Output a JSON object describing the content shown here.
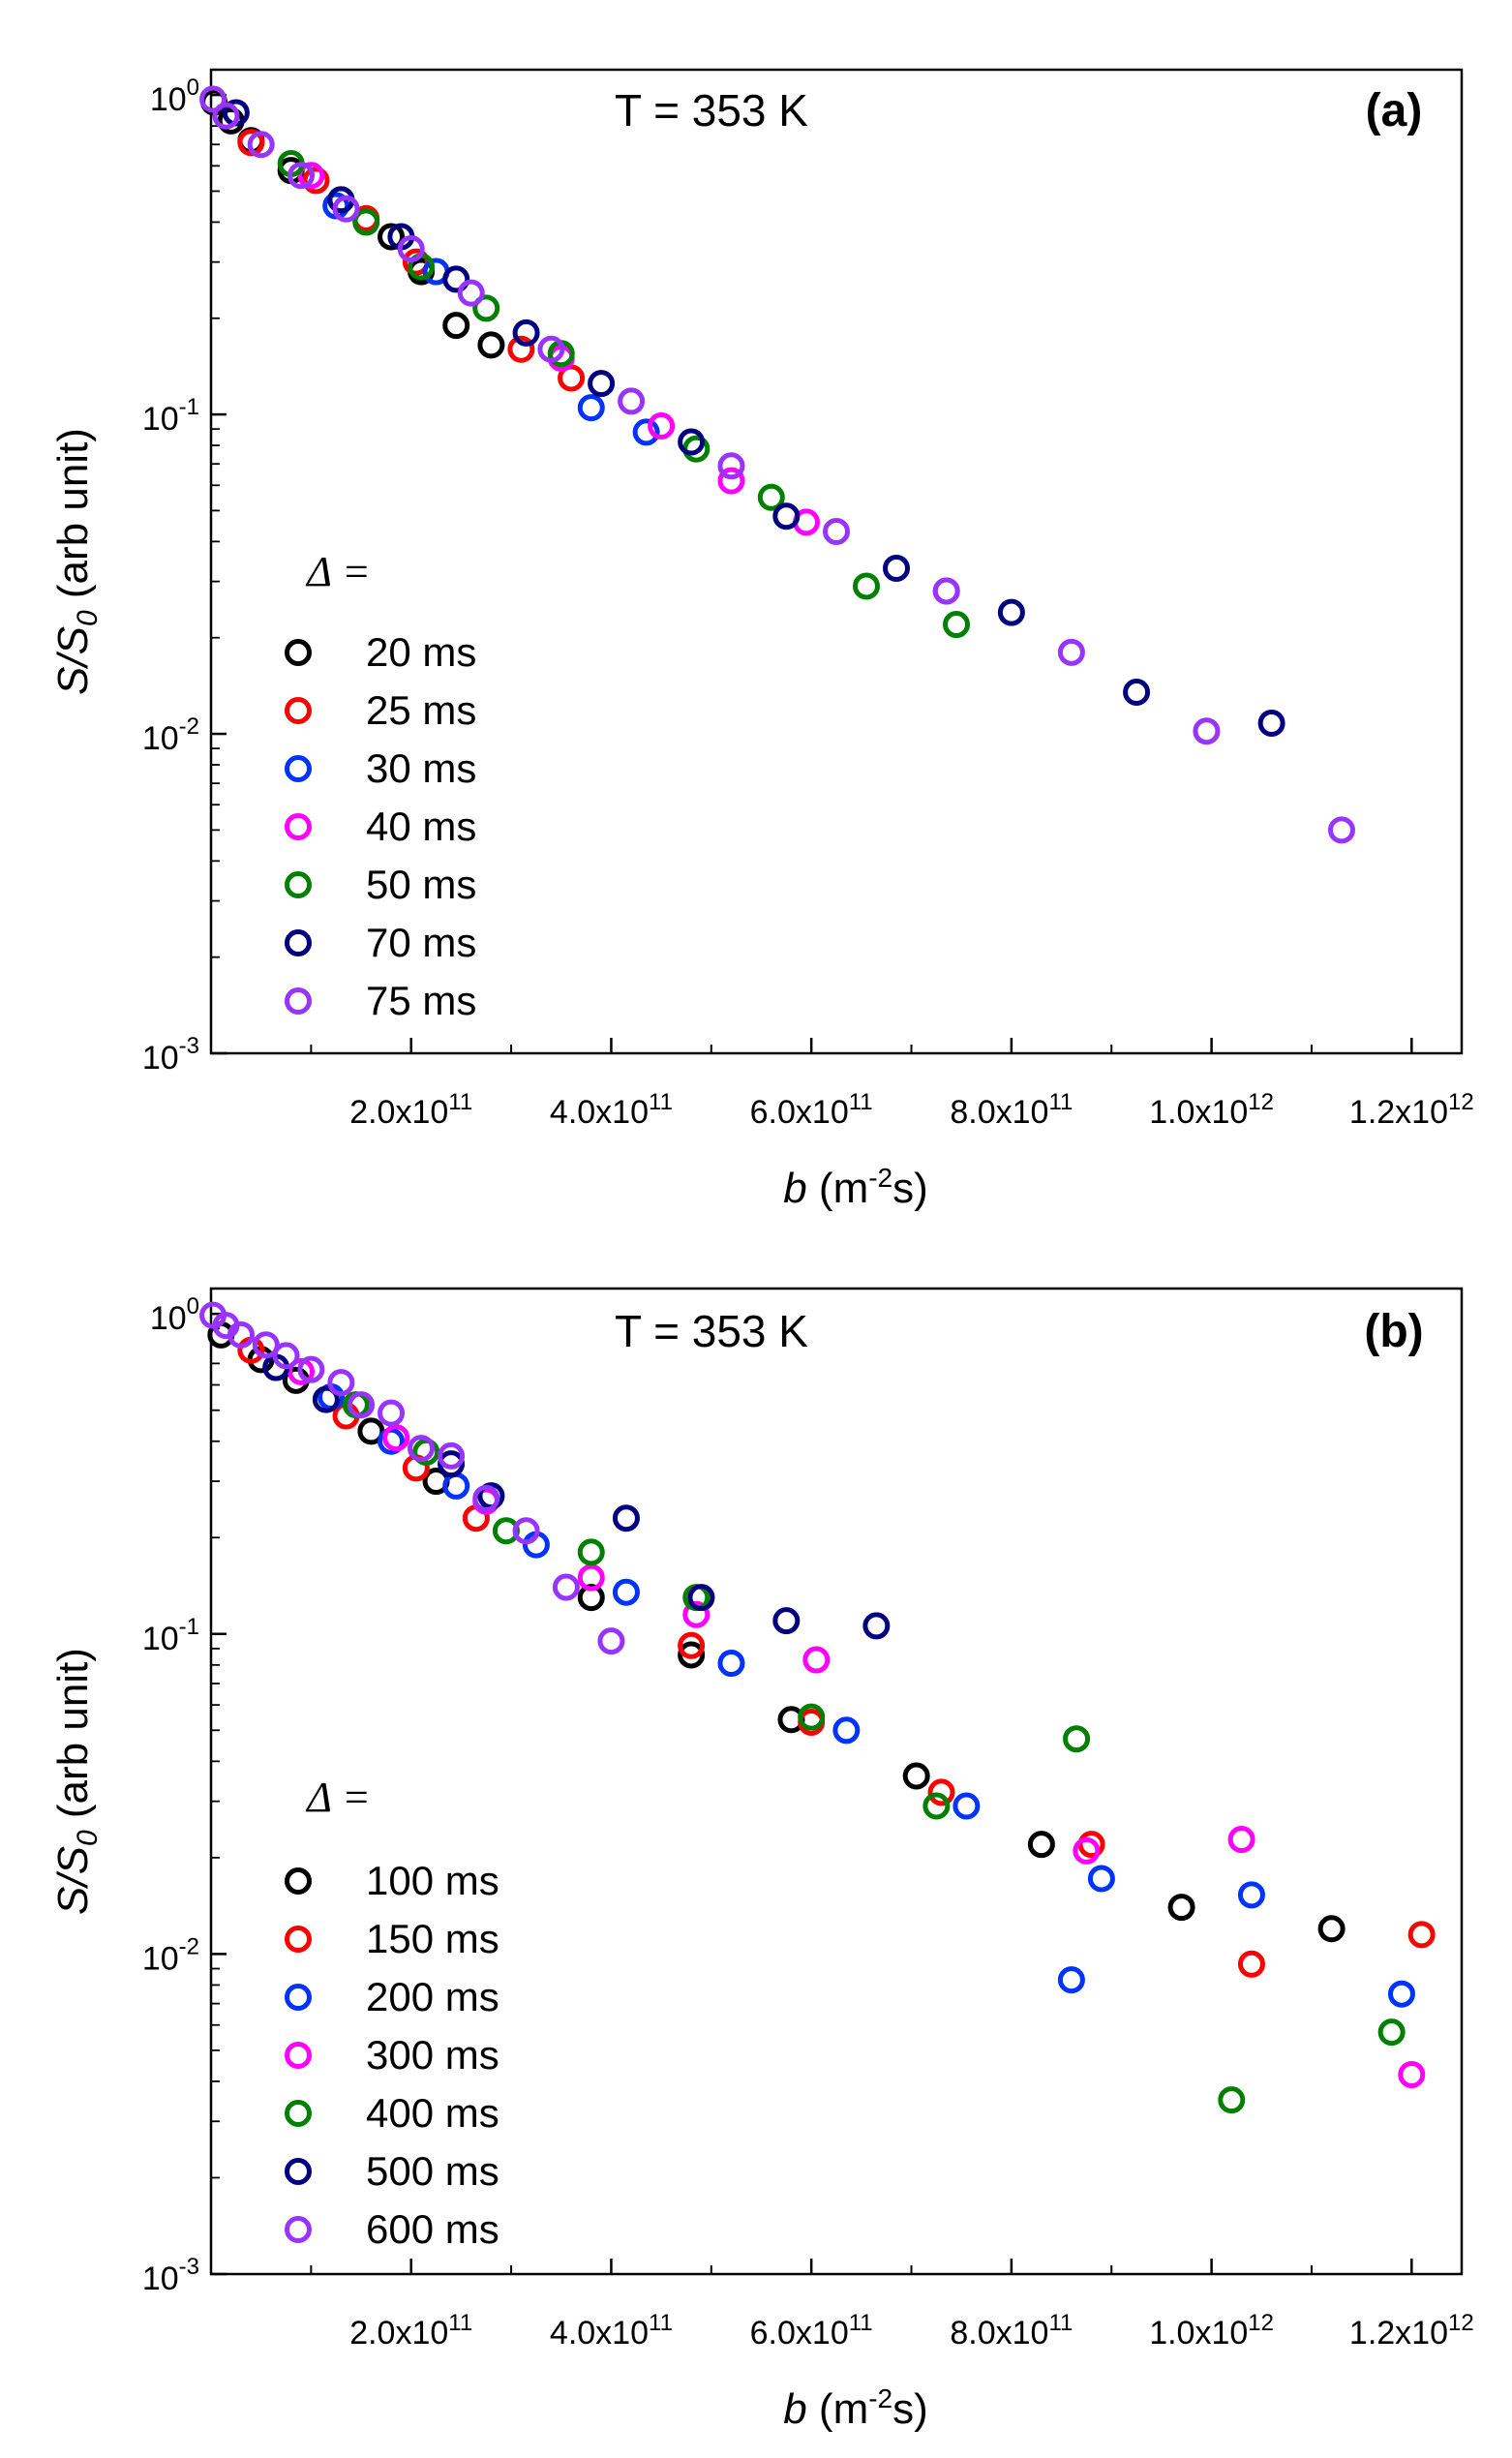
{
  "chart_data": [
    {
      "type": "scatter",
      "panel_label": "(a)",
      "annotation": "T = 353 K",
      "title": "",
      "xlabel_italic": "b",
      "xlabel_units": "(m-2s)",
      "ylabel": "S/S0 (arb unit)",
      "x_scale": "linear",
      "y_scale": "log",
      "xlim": [
        0,
        1250000000000.0
      ],
      "ylim": [
        0.001,
        1.2
      ],
      "x_tick_labels": [
        {
          "value": 200000000000.0,
          "mant": "2.0x10",
          "exp": "11"
        },
        {
          "value": 400000000000.0,
          "mant": "4.0x10",
          "exp": "11"
        },
        {
          "value": 600000000000.0,
          "mant": "6.0x10",
          "exp": "11"
        },
        {
          "value": 800000000000.0,
          "mant": "8.0x10",
          "exp": "11"
        },
        {
          "value": 1000000000000.0,
          "mant": "1.0x10",
          "exp": "12"
        },
        {
          "value": 1200000000000.0,
          "mant": "1.2x10",
          "exp": "12"
        }
      ],
      "y_tick_labels": [
        {
          "value": 1,
          "mant": "10",
          "exp": "0"
        },
        {
          "value": 0.1,
          "mant": "10",
          "exp": "-1"
        },
        {
          "value": 0.01,
          "mant": "10",
          "exp": "-2"
        },
        {
          "value": 0.001,
          "mant": "10",
          "exp": "-3"
        }
      ],
      "legend_title": "Δ =",
      "legend_position": "bottom-left",
      "series": [
        {
          "name": "20 ms",
          "color": "#000000",
          "x": [
            3000000000.0,
            20000000000.0,
            40000000000.0,
            80000000000.0,
            130000000000.0,
            180000000000.0,
            210000000000.0,
            245000000000.0,
            280000000000.0
          ],
          "y": [
            0.95,
            0.83,
            0.72,
            0.58,
            0.47,
            0.36,
            0.28,
            0.19,
            0.165
          ]
        },
        {
          "name": "25 ms",
          "color": "#ff0000",
          "x": [
            40000000000.0,
            105000000000.0,
            155000000000.0,
            205000000000.0,
            310000000000.0,
            360000000000.0
          ],
          "y": [
            0.71,
            0.54,
            0.41,
            0.3,
            0.16,
            0.13
          ]
        },
        {
          "name": "30 ms",
          "color": "#0033ff",
          "x": [
            125000000000.0,
            225000000000.0,
            380000000000.0,
            435000000000.0
          ],
          "y": [
            0.45,
            0.28,
            0.105,
            0.088
          ]
        },
        {
          "name": "40 ms",
          "color": "#ff00ff",
          "x": [
            100000000000.0,
            350000000000.0,
            450000000000.0,
            520000000000.0,
            595000000000.0,
            735000000000.0
          ],
          "y": [
            0.56,
            0.15,
            0.092,
            0.062,
            0.046,
            0.028
          ]
        },
        {
          "name": "50 ms",
          "color": "#008000",
          "x": [
            80000000000.0,
            155000000000.0,
            210000000000.0,
            275000000000.0,
            350000000000.0,
            485000000000.0,
            560000000000.0,
            655000000000.0,
            745000000000.0
          ],
          "y": [
            0.61,
            0.4,
            0.29,
            0.215,
            0.155,
            0.078,
            0.055,
            0.029,
            0.022
          ]
        },
        {
          "name": "70 ms",
          "color": "#000080",
          "x": [
            25000000000.0,
            130000000000.0,
            190000000000.0,
            245000000000.0,
            315000000000.0,
            390000000000.0,
            480000000000.0,
            575000000000.0,
            685000000000.0,
            800000000000.0,
            925000000000.0,
            1060000000000.0
          ],
          "y": [
            0.88,
            0.47,
            0.36,
            0.265,
            0.18,
            0.125,
            0.082,
            0.048,
            0.033,
            0.024,
            0.0135,
            0.0108
          ]
        },
        {
          "name": "75 ms",
          "color": "#9933ff",
          "x": [
            2000000000.0,
            15000000000.0,
            50000000000.0,
            90000000000.0,
            135000000000.0,
            200000000000.0,
            260000000000.0,
            340000000000.0,
            420000000000.0,
            520000000000.0,
            625000000000.0,
            735000000000.0,
            860000000000.0,
            995000000000.0,
            1130000000000.0
          ],
          "y": [
            0.97,
            0.86,
            0.7,
            0.56,
            0.44,
            0.33,
            0.24,
            0.16,
            0.11,
            0.069,
            0.043,
            0.028,
            0.018,
            0.0102,
            0.005
          ]
        }
      ]
    },
    {
      "type": "scatter",
      "panel_label": "(b)",
      "annotation": "T = 353 K",
      "title": "",
      "xlabel_italic": "b",
      "xlabel_units": "(m-2s)",
      "ylabel": "S/S0 (arb unit)",
      "x_scale": "linear",
      "y_scale": "log",
      "xlim": [
        0,
        1250000000000.0
      ],
      "ylim": [
        0.001,
        1.2
      ],
      "x_tick_labels": [
        {
          "value": 200000000000.0,
          "mant": "2.0x10",
          "exp": "11"
        },
        {
          "value": 400000000000.0,
          "mant": "4.0x10",
          "exp": "11"
        },
        {
          "value": 600000000000.0,
          "mant": "6.0x10",
          "exp": "11"
        },
        {
          "value": 800000000000.0,
          "mant": "8.0x10",
          "exp": "11"
        },
        {
          "value": 1000000000000.0,
          "mant": "1.0x10",
          "exp": "12"
        },
        {
          "value": 1200000000000.0,
          "mant": "1.2x10",
          "exp": "12"
        }
      ],
      "y_tick_labels": [
        {
          "value": 1,
          "mant": "10",
          "exp": "0"
        },
        {
          "value": 0.1,
          "mant": "10",
          "exp": "-1"
        },
        {
          "value": 0.01,
          "mant": "10",
          "exp": "-2"
        },
        {
          "value": 0.001,
          "mant": "10",
          "exp": "-3"
        }
      ],
      "legend_title": "Δ =",
      "legend_position": "bottom-left",
      "series": [
        {
          "name": "100 ms",
          "color": "#000000",
          "x": [
            10000000000.0,
            50000000000.0,
            85000000000.0,
            160000000000.0,
            225000000000.0,
            380000000000.0,
            480000000000.0,
            580000000000.0,
            705000000000.0,
            830000000000.0,
            970000000000.0,
            1120000000000.0
          ],
          "y": [
            0.86,
            0.72,
            0.62,
            0.43,
            0.3,
            0.13,
            0.086,
            0.054,
            0.036,
            0.022,
            0.014,
            0.012
          ]
        },
        {
          "name": "150 ms",
          "color": "#ff0000",
          "x": [
            40000000000.0,
            135000000000.0,
            205000000000.0,
            265000000000.0,
            480000000000.0,
            600000000000.0,
            730000000000.0,
            880000000000.0,
            1040000000000.0,
            1210000000000.0
          ],
          "y": [
            0.77,
            0.48,
            0.33,
            0.23,
            0.092,
            0.053,
            0.032,
            0.022,
            0.0093,
            0.0115
          ]
        },
        {
          "name": "200 ms",
          "color": "#0033ff",
          "x": [
            120000000000.0,
            180000000000.0,
            245000000000.0,
            325000000000.0,
            415000000000.0,
            520000000000.0,
            635000000000.0,
            755000000000.0,
            860000000000.0,
            890000000000.0,
            1040000000000.0,
            1190000000000.0
          ],
          "y": [
            0.55,
            0.4,
            0.29,
            0.19,
            0.135,
            0.081,
            0.05,
            0.029,
            0.0083,
            0.0172,
            0.0153,
            0.0075
          ]
        },
        {
          "name": "300 ms",
          "color": "#ff00ff",
          "x": [
            90000000000.0,
            185000000000.0,
            275000000000.0,
            380000000000.0,
            485000000000.0,
            605000000000.0,
            875000000000.0,
            1030000000000.0,
            1200000000000.0
          ],
          "y": [
            0.66,
            0.41,
            0.26,
            0.15,
            0.115,
            0.083,
            0.021,
            0.0228,
            0.0042
          ]
        },
        {
          "name": "400 ms",
          "color": "#008000",
          "x": [
            145000000000.0,
            215000000000.0,
            295000000000.0,
            380000000000.0,
            485000000000.0,
            600000000000.0,
            725000000000.0,
            865000000000.0,
            1020000000000.0,
            1180000000000.0
          ],
          "y": [
            0.52,
            0.37,
            0.21,
            0.18,
            0.13,
            0.055,
            0.029,
            0.047,
            0.0035,
            0.0057
          ]
        },
        {
          "name": "500 ms",
          "color": "#000080",
          "x": [
            65000000000.0,
            115000000000.0,
            240000000000.0,
            280000000000.0,
            415000000000.0,
            490000000000.0,
            575000000000.0,
            665000000000.0
          ],
          "y": [
            0.68,
            0.54,
            0.34,
            0.27,
            0.23,
            0.13,
            0.11,
            0.106
          ]
        },
        {
          "name": "600 ms",
          "color": "#9933ff",
          "x": [
            2000000000.0,
            15000000000.0,
            30000000000.0,
            55000000000.0,
            75000000000.0,
            100000000000.0,
            130000000000.0,
            150000000000.0,
            180000000000.0,
            210000000000.0,
            240000000000.0,
            275000000000.0,
            315000000000.0,
            355000000000.0,
            400000000000.0
          ],
          "y": [
            0.99,
            0.92,
            0.86,
            0.8,
            0.74,
            0.67,
            0.61,
            0.52,
            0.49,
            0.38,
            0.36,
            0.265,
            0.21,
            0.14,
            0.095
          ]
        }
      ]
    }
  ]
}
